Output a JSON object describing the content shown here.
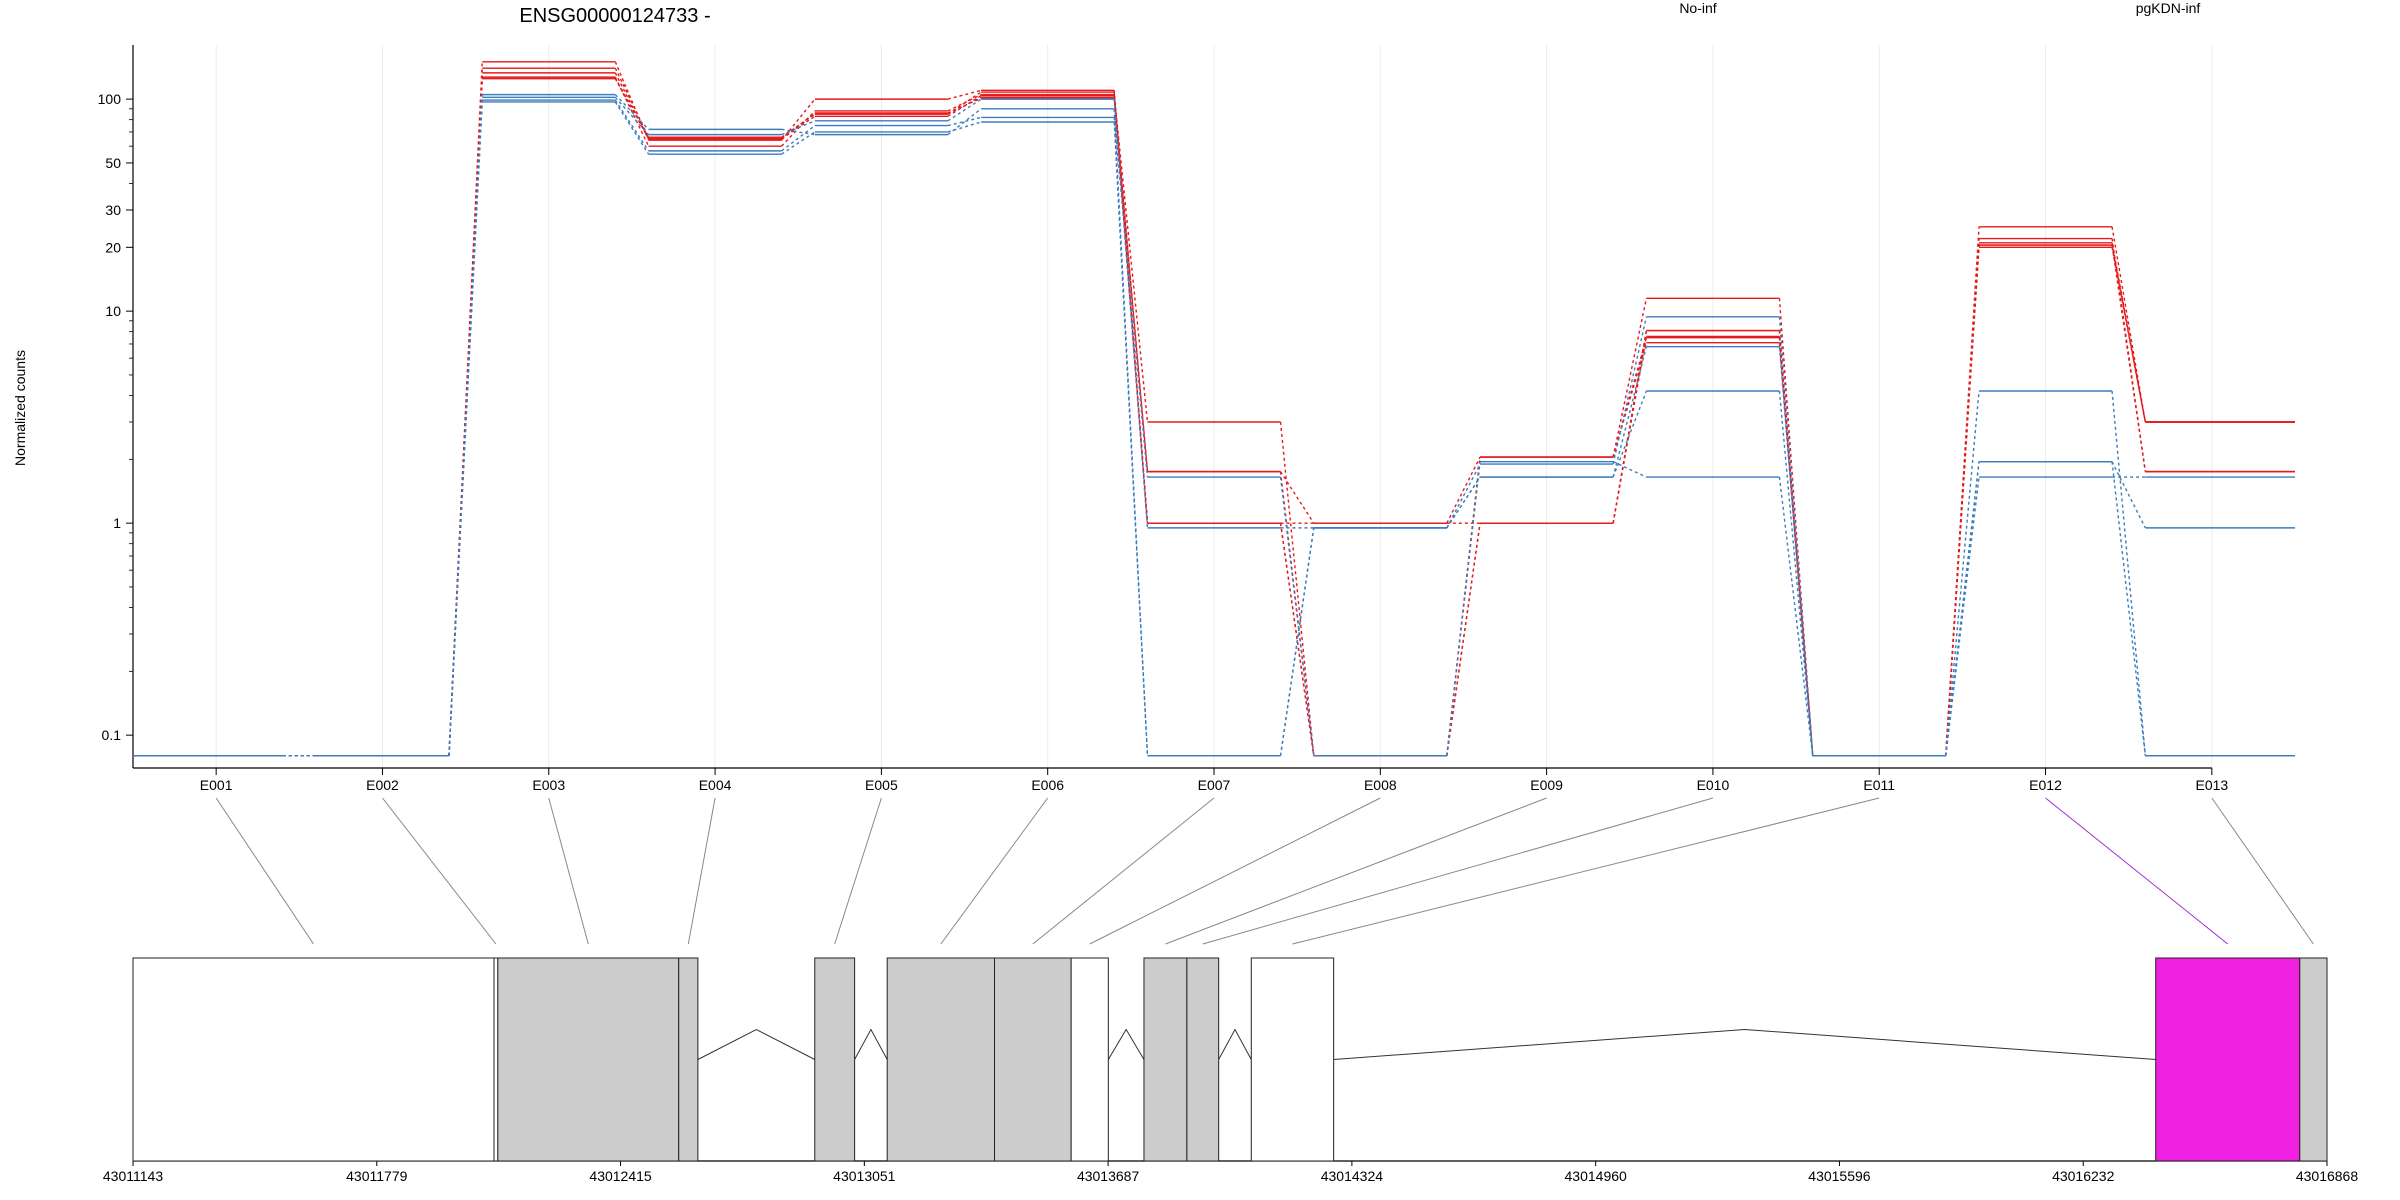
{
  "title": "ENSG00000124733 -",
  "ylabel": "Normalized counts",
  "legend": [
    {
      "name": "No-inf",
      "color": "#e41a1c"
    },
    {
      "name": "pgKDN-inf",
      "color": "#3b7dbd"
    }
  ],
  "colors": {
    "red": "#e41a1c",
    "blue": "#3b7dbd",
    "exon_gray": "#cccccc",
    "highlight": "#f020e0"
  },
  "chart_data": {
    "type": "line",
    "yscale": "log",
    "ylim": [
      0.07,
      180
    ],
    "yticks": [
      0.1,
      1,
      10,
      20,
      30,
      50,
      100
    ],
    "ytick_labels": [
      "0.1",
      "1",
      "10",
      "20",
      "30",
      "50",
      "100"
    ],
    "categories": [
      "E001",
      "E002",
      "E003",
      "E004",
      "E005",
      "E006",
      "E007",
      "E008",
      "E009",
      "E010",
      "E011",
      "E012",
      "E013"
    ],
    "series": [
      {
        "group": "No-inf",
        "values": [
          0.08,
          0.08,
          150,
          64,
          100,
          110,
          1,
          0.08,
          1,
          8.1,
          0.08,
          21,
          3.0
        ]
      },
      {
        "group": "No-inf",
        "values": [
          0.08,
          0.08,
          140,
          66,
          85,
          108,
          1,
          0.08,
          1,
          7.6,
          0.08,
          20.5,
          1.75
        ]
      },
      {
        "group": "No-inf",
        "values": [
          0.08,
          0.08,
          133,
          65,
          83,
          104,
          1.75,
          1,
          2.05,
          7.1,
          0.08,
          20,
          3.0
        ]
      },
      {
        "group": "No-inf",
        "values": [
          0.08,
          0.08,
          127,
          60,
          88,
          105,
          3.0,
          0.08,
          2.05,
          11.5,
          0.08,
          22,
          1.75
        ]
      },
      {
        "group": "No-inf",
        "values": [
          0.08,
          0.08,
          125,
          66,
          85,
          102,
          1,
          1,
          1,
          8.1,
          0.08,
          25,
          3.0
        ]
      },
      {
        "group": "No-inf",
        "values": [
          0.08,
          0.08,
          125,
          65,
          86,
          101,
          1.75,
          0.08,
          2.05,
          7.5,
          0.08,
          20.5,
          3.0
        ]
      },
      {
        "group": "pgKDN-inf",
        "values": [
          0.08,
          0.08,
          105,
          72,
          68,
          90,
          0.08,
          0.95,
          1.9,
          9.4,
          0.08,
          1.95,
          0.95
        ]
      },
      {
        "group": "pgKDN-inf",
        "values": [
          0.08,
          0.08,
          102,
          68,
          79,
          100,
          0.95,
          0.95,
          1.65,
          4.2,
          0.08,
          4.2,
          0.08
        ]
      },
      {
        "group": "pgKDN-inf",
        "values": [
          0.08,
          0.08,
          99,
          57,
          75,
          82,
          1.65,
          0.08,
          1.95,
          1.65,
          0.08,
          1.65,
          1.65
        ]
      },
      {
        "group": "pgKDN-inf",
        "values": [
          0.08,
          0.08,
          97,
          55,
          70,
          78,
          0.08,
          0.95,
          1.65,
          6.8,
          0.08,
          1.95,
          0.08
        ]
      }
    ],
    "genomic_axis": {
      "start": 43011143,
      "end": 43016868,
      "tick_labels": [
        "43011143",
        "43011779",
        "43012415",
        "43013051",
        "43013687",
        "43014324",
        "43014960",
        "43015596",
        "43016232",
        "43016868"
      ]
    },
    "exons": [
      {
        "start": 43011143,
        "end": 43012085,
        "fill": "white"
      },
      {
        "start": 43012085,
        "end": 43012095,
        "fill": "white"
      },
      {
        "start": 43012095,
        "end": 43012567,
        "fill": "gray"
      },
      {
        "start": 43012567,
        "end": 43012617,
        "fill": "gray"
      },
      {
        "start": 43012922,
        "end": 43013026,
        "fill": "gray"
      },
      {
        "start": 43013111,
        "end": 43013391,
        "fill": "gray"
      },
      {
        "start": 43013391,
        "end": 43013591,
        "fill": "gray"
      },
      {
        "start": 43013591,
        "end": 43013688,
        "fill": "white"
      },
      {
        "start": 43013781,
        "end": 43013893,
        "fill": "gray"
      },
      {
        "start": 43013893,
        "end": 43013976,
        "fill": "gray"
      },
      {
        "start": 43014061,
        "end": 43014276,
        "fill": "white"
      },
      {
        "start": 43016421,
        "end": 43016797,
        "fill": "highlight"
      },
      {
        "start": 43016797,
        "end": 43016868,
        "fill": "gray"
      }
    ],
    "introns": [
      {
        "from": 43012617,
        "to": 43012922
      },
      {
        "from": 43013026,
        "to": 43013111
      },
      {
        "from": 43013688,
        "to": 43013781
      },
      {
        "from": 43013976,
        "to": 43014061
      },
      {
        "from": 43014276,
        "to": 43016421
      }
    ],
    "exon_links": [
      {
        "bin": "E001",
        "start": 43011143,
        "end": 43012085
      },
      {
        "bin": "E002",
        "start": 43012085,
        "end": 43012095
      },
      {
        "bin": "E003",
        "start": 43012095,
        "end": 43012567
      },
      {
        "bin": "E004",
        "start": 43012567,
        "end": 43012617
      },
      {
        "bin": "E005",
        "start": 43012922,
        "end": 43013026
      },
      {
        "bin": "E006",
        "start": 43013111,
        "end": 43013391
      },
      {
        "bin": "E007",
        "start": 43013391,
        "end": 43013591
      },
      {
        "bin": "E008",
        "start": 43013591,
        "end": 43013688
      },
      {
        "bin": "E009",
        "start": 43013781,
        "end": 43013893
      },
      {
        "bin": "E010",
        "start": 43013893,
        "end": 43013976
      },
      {
        "bin": "E011",
        "start": 43014061,
        "end": 43014276
      },
      {
        "bin": "E012",
        "start": 43016421,
        "end": 43016797,
        "highlight": true
      },
      {
        "bin": "E013",
        "start": 43016797,
        "end": 43016868
      }
    ]
  }
}
